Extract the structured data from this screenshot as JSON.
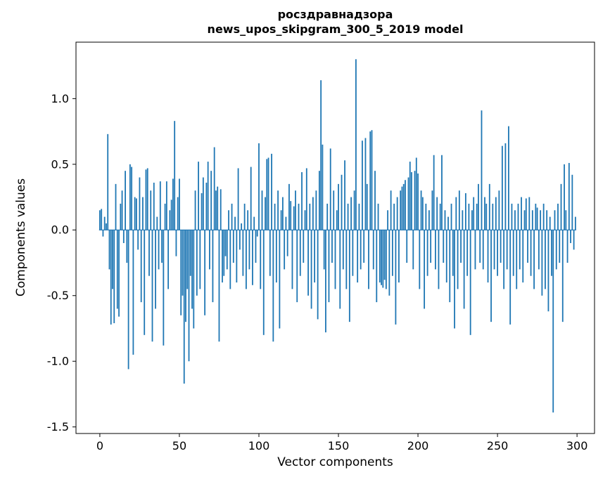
{
  "chart_data": {
    "type": "bar",
    "title_line1": "росздравнадзора",
    "title_line2": "news_upos_skipgram_300_5_2019 model",
    "xlabel": "Vector components",
    "ylabel": "Components values",
    "xlim": [
      -15,
      311
    ],
    "ylim": [
      -1.55,
      1.43
    ],
    "x_ticks": [
      0,
      50,
      100,
      150,
      200,
      250,
      300
    ],
    "y_ticks": [
      -1.5,
      -1.0,
      -0.5,
      0.0,
      0.5,
      1.0
    ],
    "bar_color": "#1f77b4",
    "spine_color": "#000000",
    "n_components": 300,
    "values": [
      0.15,
      0.16,
      -0.05,
      0.1,
      0.05,
      0.73,
      -0.3,
      -0.72,
      -0.45,
      -0.71,
      0.35,
      -0.6,
      -0.66,
      0.2,
      0.3,
      -0.1,
      0.45,
      -0.25,
      -1.06,
      0.5,
      0.48,
      -0.95,
      0.25,
      0.24,
      -0.15,
      0.4,
      -0.55,
      0.25,
      -0.8,
      0.46,
      0.47,
      -0.35,
      0.3,
      -0.85,
      0.36,
      -0.6,
      0.1,
      -0.3,
      0.37,
      -0.25,
      -0.88,
      0.2,
      0.37,
      -0.45,
      0.15,
      0.23,
      0.39,
      0.83,
      -0.2,
      0.25,
      0.39,
      -0.65,
      -0.5,
      -1.17,
      -0.7,
      -0.45,
      -1.0,
      -0.35,
      -0.6,
      -0.75,
      0.3,
      -0.5,
      0.52,
      -0.45,
      0.28,
      0.4,
      -0.65,
      0.36,
      0.52,
      -0.3,
      0.45,
      -0.55,
      0.63,
      0.3,
      0.33,
      -0.85,
      0.31,
      -0.4,
      -0.35,
      -0.2,
      -0.3,
      0.15,
      -0.45,
      0.2,
      -0.25,
      0.1,
      -0.4,
      0.47,
      -0.15,
      0.05,
      -0.35,
      0.2,
      -0.45,
      0.15,
      -0.3,
      0.48,
      -0.42,
      0.1,
      -0.25,
      -0.05,
      0.66,
      -0.45,
      0.3,
      -0.8,
      0.25,
      0.54,
      0.55,
      -0.35,
      0.58,
      -0.85,
      0.2,
      -0.4,
      0.3,
      -0.75,
      0.15,
      0.25,
      -0.3,
      0.1,
      -0.2,
      0.35,
      0.22,
      -0.45,
      0.18,
      0.3,
      -0.55,
      0.2,
      -0.35,
      0.44,
      -0.25,
      0.15,
      0.47,
      -0.5,
      0.2,
      -0.6,
      0.25,
      -0.4,
      0.3,
      -0.68,
      0.45,
      1.14,
      0.65,
      -0.3,
      -0.78,
      0.2,
      -0.55,
      0.62,
      -0.25,
      0.3,
      -0.45,
      0.15,
      0.35,
      -0.6,
      0.42,
      -0.3,
      0.53,
      -0.45,
      0.2,
      -0.7,
      0.25,
      -0.35,
      0.3,
      1.3,
      -0.4,
      0.2,
      -0.3,
      0.68,
      -0.25,
      0.7,
      0.35,
      -0.45,
      0.75,
      0.76,
      -0.3,
      0.45,
      -0.55,
      0.2,
      -0.4,
      -0.42,
      -0.44,
      -0.38,
      -0.45,
      0.15,
      -0.5,
      0.3,
      -0.35,
      0.2,
      -0.72,
      0.25,
      -0.4,
      0.3,
      0.33,
      0.35,
      0.38,
      -0.25,
      0.4,
      0.52,
      0.44,
      -0.3,
      0.45,
      0.55,
      0.43,
      -0.45,
      0.3,
      0.25,
      -0.6,
      0.2,
      -0.35,
      0.15,
      -0.25,
      0.3,
      0.57,
      -0.3,
      0.25,
      -0.45,
      0.2,
      0.57,
      -0.25,
      0.15,
      -0.4,
      0.1,
      -0.55,
      0.2,
      -0.35,
      -0.75,
      0.25,
      -0.45,
      0.3,
      -0.25,
      0.15,
      -0.6,
      0.28,
      -0.35,
      0.2,
      -0.8,
      0.15,
      0.25,
      -0.3,
      0.2,
      0.35,
      -0.25,
      0.91,
      -0.3,
      0.25,
      0.2,
      -0.4,
      0.35,
      -0.7,
      0.2,
      -0.3,
      0.25,
      -0.35,
      0.3,
      -0.25,
      0.64,
      -0.45,
      0.66,
      -0.3,
      0.79,
      -0.72,
      0.2,
      -0.35,
      0.15,
      -0.45,
      0.2,
      -0.3,
      0.25,
      -0.4,
      0.15,
      0.24,
      -0.25,
      0.25,
      -0.35,
      0.15,
      -0.45,
      0.2,
      0.17,
      -0.3,
      0.15,
      -0.5,
      0.2,
      -0.45,
      0.15,
      -0.62,
      0.1,
      -0.35,
      -1.39,
      0.15,
      -0.3,
      0.2,
      -0.25,
      0.35,
      -0.7,
      0.5,
      0.15,
      -0.25,
      0.51,
      -0.1,
      0.42,
      -0.15,
      0.1
    ]
  }
}
